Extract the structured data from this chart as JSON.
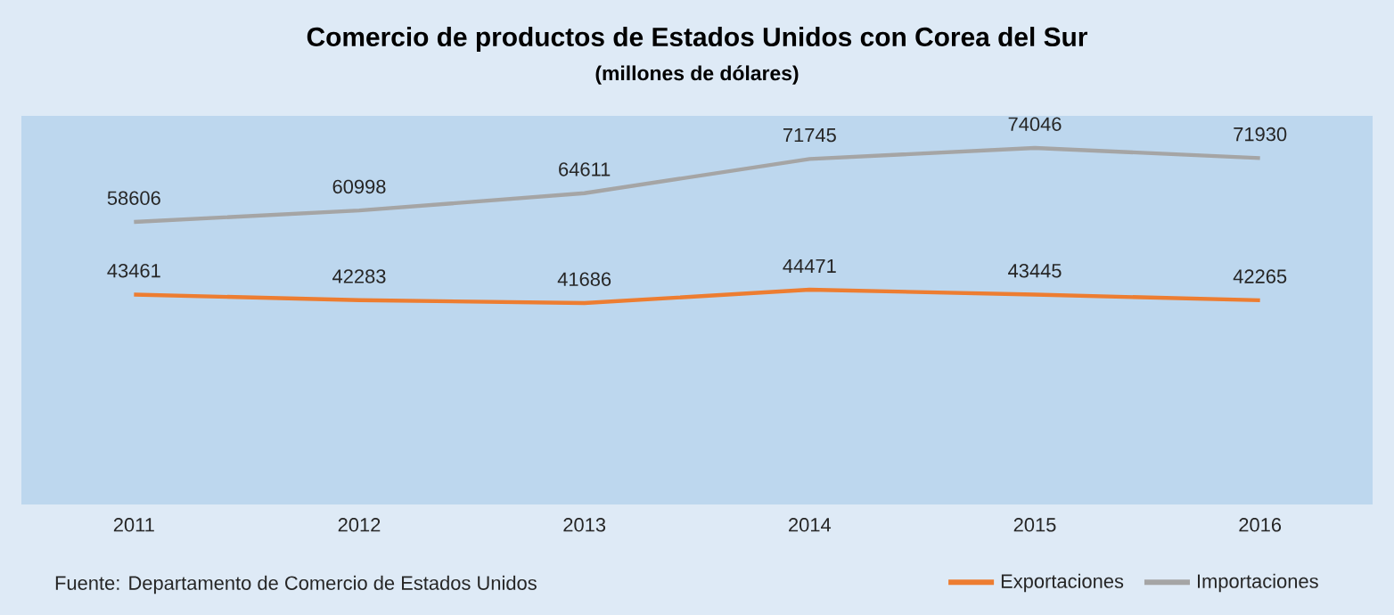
{
  "chart_data": {
    "type": "line",
    "title": "Comercio de productos de Estados Unidos con Corea del Sur",
    "subtitle": "(millones de dólares)",
    "categories": [
      "2011",
      "2012",
      "2013",
      "2014",
      "2015",
      "2016"
    ],
    "series": [
      {
        "name": "Exportaciones",
        "color": "#ed7d31",
        "values": [
          43461,
          42283,
          41686,
          44471,
          43445,
          42265
        ]
      },
      {
        "name": "Importaciones",
        "color": "#a5a5a5",
        "values": [
          58606,
          60998,
          64611,
          71745,
          74046,
          71930
        ]
      }
    ],
    "tick_labels": "x",
    "data_labels": true,
    "grid": false,
    "legend": "bottom right",
    "marker": "none",
    "line_style": "solid",
    "annotations": [
      "Fuente: Departamento de Comercio de Estados Unidos"
    ]
  }
}
